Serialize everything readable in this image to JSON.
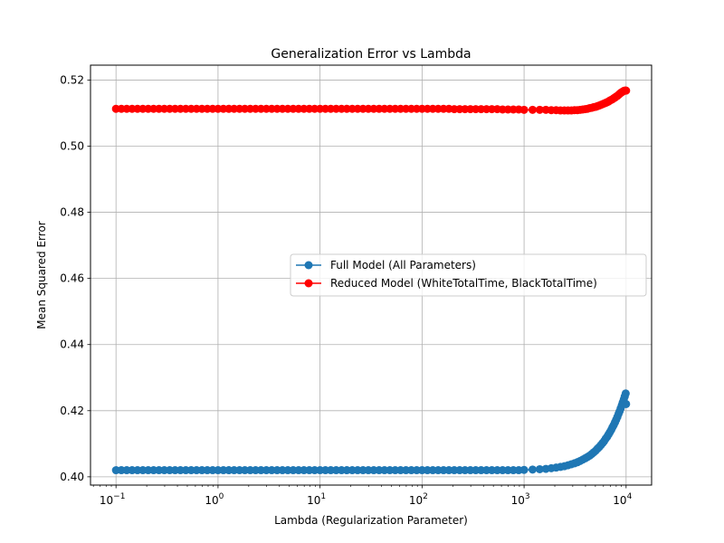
{
  "chart_data": {
    "type": "line",
    "title": "Generalization Error vs Lambda",
    "xlabel": "Lambda (Regularization Parameter)",
    "ylabel": "Mean Squared Error",
    "xscale": "log",
    "xlim": [
      0.1,
      10000
    ],
    "ylim": [
      0.3975,
      0.5245
    ],
    "x_ticks": [
      0.1,
      1,
      10,
      100,
      1000,
      10000
    ],
    "x_tick_labels": [
      {
        "base": "10",
        "exp": "−1"
      },
      {
        "base": "10",
        "exp": "0"
      },
      {
        "base": "10",
        "exp": "1"
      },
      {
        "base": "10",
        "exp": "2"
      },
      {
        "base": "10",
        "exp": "3"
      },
      {
        "base": "10",
        "exp": "4"
      }
    ],
    "y_ticks": [
      0.4,
      0.42,
      0.44,
      0.46,
      0.48,
      0.5,
      0.52
    ],
    "y_tick_labels": [
      "0.40",
      "0.42",
      "0.44",
      "0.46",
      "0.48",
      "0.50",
      "0.52"
    ],
    "grid": true,
    "legend_position": "center-right",
    "x": [
      0.1,
      0.1129,
      0.1274,
      0.1438,
      0.1624,
      0.1833,
      0.2069,
      0.2336,
      0.2637,
      0.2976,
      0.336,
      0.3793,
      0.4281,
      0.4833,
      0.5456,
      0.6158,
      0.6952,
      0.7848,
      0.8859,
      1.0,
      1.129,
      1.274,
      1.438,
      1.624,
      1.833,
      2.069,
      2.336,
      2.637,
      2.976,
      3.36,
      3.793,
      4.281,
      4.833,
      5.456,
      6.158,
      6.952,
      7.848,
      8.859,
      10.0,
      11.29,
      12.74,
      14.38,
      16.24,
      18.33,
      20.69,
      23.36,
      26.37,
      29.76,
      33.6,
      37.93,
      42.81,
      48.33,
      54.56,
      61.58,
      69.52,
      78.48,
      88.59,
      100.0,
      112.9,
      127.4,
      143.8,
      162.4,
      183.3,
      206.9,
      233.6,
      263.7,
      297.6,
      336.0,
      379.3,
      428.1,
      483.3,
      545.6,
      615.8,
      695.2,
      784.8,
      885.9,
      1000.0,
      1212.0,
      1424.0,
      1636.0,
      1848.0,
      2061.0,
      2273.0,
      2485.0,
      2697.0,
      2909.0,
      3121.0,
      3333.0,
      3545.0,
      3758.0,
      3970.0,
      4182.0,
      4394.0,
      4606.0,
      4818.0,
      5030.0,
      5242.0,
      5455.0,
      5667.0,
      5879.0,
      6091.0,
      6303.0,
      6515.0,
      6727.0,
      6939.0,
      7152.0,
      7364.0,
      7576.0,
      7788.0,
      8000.0,
      8212.0,
      8424.0,
      8636.0,
      8848.0,
      9061.0,
      9273.0,
      9485.0,
      9697.0,
      9909.0,
      10000.0
    ],
    "series": [
      {
        "name": "Full Model (All Parameters)",
        "color": "#1f77b4",
        "values": [
          0.402,
          0.402,
          0.402,
          0.402,
          0.402,
          0.402,
          0.402,
          0.402,
          0.402,
          0.402,
          0.402,
          0.402,
          0.402,
          0.402,
          0.402,
          0.402,
          0.402,
          0.402,
          0.402,
          0.402,
          0.402,
          0.402,
          0.402,
          0.402,
          0.402,
          0.402,
          0.402,
          0.402,
          0.402,
          0.402,
          0.402,
          0.402,
          0.402,
          0.402,
          0.402,
          0.402,
          0.402,
          0.402,
          0.402,
          0.402,
          0.402,
          0.402,
          0.402,
          0.402,
          0.402,
          0.402,
          0.402,
          0.402,
          0.402,
          0.402,
          0.402,
          0.402,
          0.402,
          0.402,
          0.402,
          0.402,
          0.402,
          0.402,
          0.402,
          0.402,
          0.402,
          0.402,
          0.402,
          0.402,
          0.402,
          0.402,
          0.402,
          0.402,
          0.402,
          0.402,
          0.402,
          0.402,
          0.402,
          0.402,
          0.402,
          0.402,
          0.4021,
          0.4022,
          0.4023,
          0.4024,
          0.4026,
          0.4028,
          0.403,
          0.4032,
          0.4035,
          0.4038,
          0.4041,
          0.4044,
          0.4048,
          0.4052,
          0.4056,
          0.406,
          0.4064,
          0.4069,
          0.4074,
          0.4079,
          0.4085,
          0.409,
          0.4096,
          0.4102,
          0.4108,
          0.4115,
          0.4121,
          0.4128,
          0.4135,
          0.4142,
          0.415,
          0.4157,
          0.4165,
          0.4173,
          0.4181,
          0.419,
          0.4198,
          0.4207,
          0.4216,
          0.4225,
          0.4234,
          0.4243,
          0.4252,
          0.422
        ]
      },
      {
        "name": "Reduced Model (WhiteTotalTime, BlackTotalTime)",
        "color": "#ff0000",
        "values": [
          0.5113,
          0.5113,
          0.5113,
          0.5113,
          0.5113,
          0.5113,
          0.5113,
          0.5113,
          0.5113,
          0.5113,
          0.5113,
          0.5113,
          0.5113,
          0.5113,
          0.5113,
          0.5113,
          0.5113,
          0.5113,
          0.5113,
          0.5113,
          0.5113,
          0.5113,
          0.5113,
          0.5113,
          0.5113,
          0.5113,
          0.5113,
          0.5113,
          0.5113,
          0.5113,
          0.5113,
          0.5113,
          0.5113,
          0.5113,
          0.5113,
          0.5113,
          0.5113,
          0.5113,
          0.5113,
          0.5113,
          0.5113,
          0.5113,
          0.5113,
          0.5113,
          0.5113,
          0.5113,
          0.5113,
          0.5113,
          0.5113,
          0.5113,
          0.5113,
          0.5113,
          0.5113,
          0.5113,
          0.5113,
          0.5113,
          0.5113,
          0.5113,
          0.5113,
          0.5113,
          0.5113,
          0.5113,
          0.5113,
          0.5112,
          0.5112,
          0.5112,
          0.5112,
          0.5112,
          0.5112,
          0.5112,
          0.5112,
          0.5112,
          0.5111,
          0.5111,
          0.5111,
          0.5111,
          0.511,
          0.511,
          0.511,
          0.511,
          0.5109,
          0.5109,
          0.5108,
          0.5108,
          0.5108,
          0.5108,
          0.5109,
          0.5109,
          0.511,
          0.5111,
          0.5112,
          0.5113,
          0.5115,
          0.5116,
          0.5118,
          0.5119,
          0.5121,
          0.5123,
          0.5125,
          0.5127,
          0.5129,
          0.5131,
          0.5133,
          0.5135,
          0.5138,
          0.514,
          0.5142,
          0.5145,
          0.5147,
          0.515,
          0.5152,
          0.5155,
          0.5158,
          0.5161,
          0.5163,
          0.5165,
          0.5167,
          0.5168,
          0.5168,
          0.5168
        ]
      }
    ]
  }
}
